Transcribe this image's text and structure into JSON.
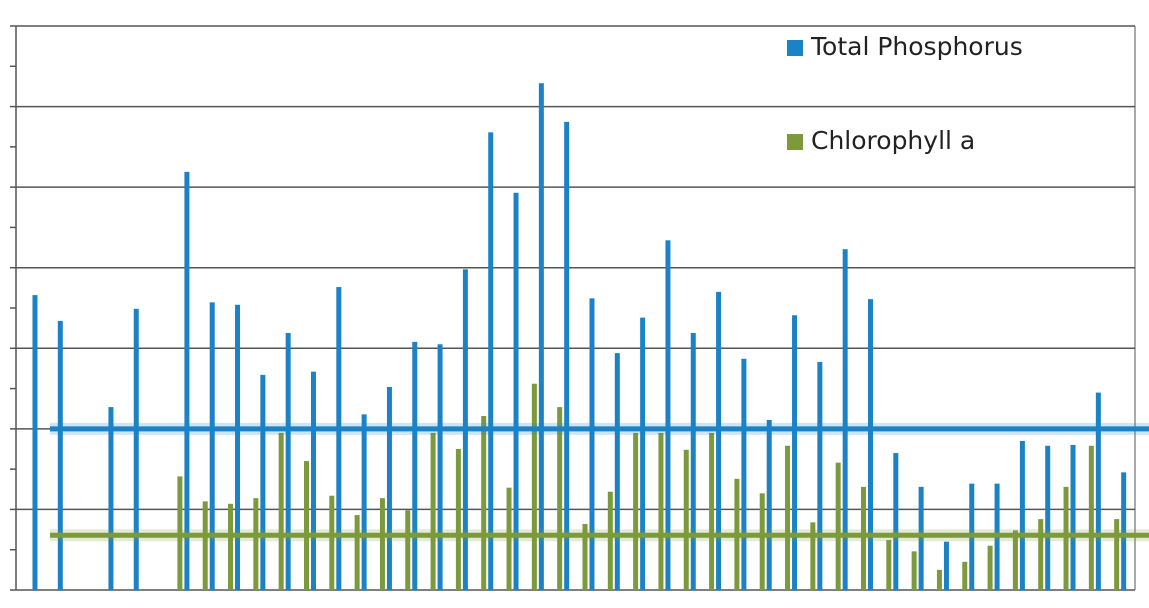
{
  "chart_data": {
    "type": "bar",
    "categories": [
      null,
      null,
      null,
      null,
      null,
      null,
      null,
      null,
      null,
      null,
      null,
      null,
      null,
      null,
      null,
      null,
      null,
      null,
      null,
      null,
      null,
      null,
      null,
      null,
      null,
      null,
      null,
      null,
      null,
      null,
      null,
      null,
      null,
      null,
      null,
      null,
      null,
      null,
      null,
      null,
      null,
      null,
      null,
      null
    ],
    "series": [
      {
        "name": "Total Phosphorus",
        "color": "#1b82c6",
        "values": [
          3.66,
          3.34,
          null,
          2.27,
          3.49,
          null,
          5.19,
          3.57,
          3.54,
          2.67,
          3.19,
          2.71,
          3.76,
          2.18,
          2.52,
          3.08,
          3.05,
          3.98,
          5.68,
          4.93,
          6.29,
          5.81,
          3.62,
          2.94,
          3.38,
          4.34,
          3.19,
          3.7,
          2.87,
          2.11,
          3.41,
          2.83,
          4.23,
          3.61,
          1.7,
          1.28,
          0.6,
          1.32,
          1.32,
          1.85,
          1.79,
          1.8,
          2.45,
          1.46
        ]
      },
      {
        "name": "Chlorophyll a",
        "color": "#7c9a3c",
        "values": [
          null,
          null,
          null,
          null,
          null,
          null,
          1.41,
          1.1,
          1.07,
          1.14,
          1.95,
          1.6,
          1.17,
          0.93,
          1.14,
          0.99,
          1.95,
          1.75,
          2.16,
          1.27,
          2.56,
          2.27,
          0.82,
          1.22,
          1.95,
          1.95,
          1.74,
          1.95,
          1.38,
          1.2,
          1.79,
          0.84,
          1.58,
          1.28,
          0.62,
          0.48,
          0.25,
          0.35,
          0.55,
          0.74,
          0.88,
          1.28,
          1.79,
          0.88
        ]
      }
    ],
    "reference_lines": [
      {
        "value": 2.0,
        "color": "#1b82c6"
      },
      {
        "value": 0.68,
        "color": "#7c9a3c"
      }
    ],
    "ylim": [
      0,
      7
    ],
    "yticks": [
      0,
      1,
      2,
      3,
      4,
      5,
      6,
      7
    ],
    "minor_yticks": [
      0.5,
      1.5,
      2.5,
      3.5,
      4.5,
      5.5,
      6.5
    ],
    "grid": true,
    "legend": "upper right"
  }
}
